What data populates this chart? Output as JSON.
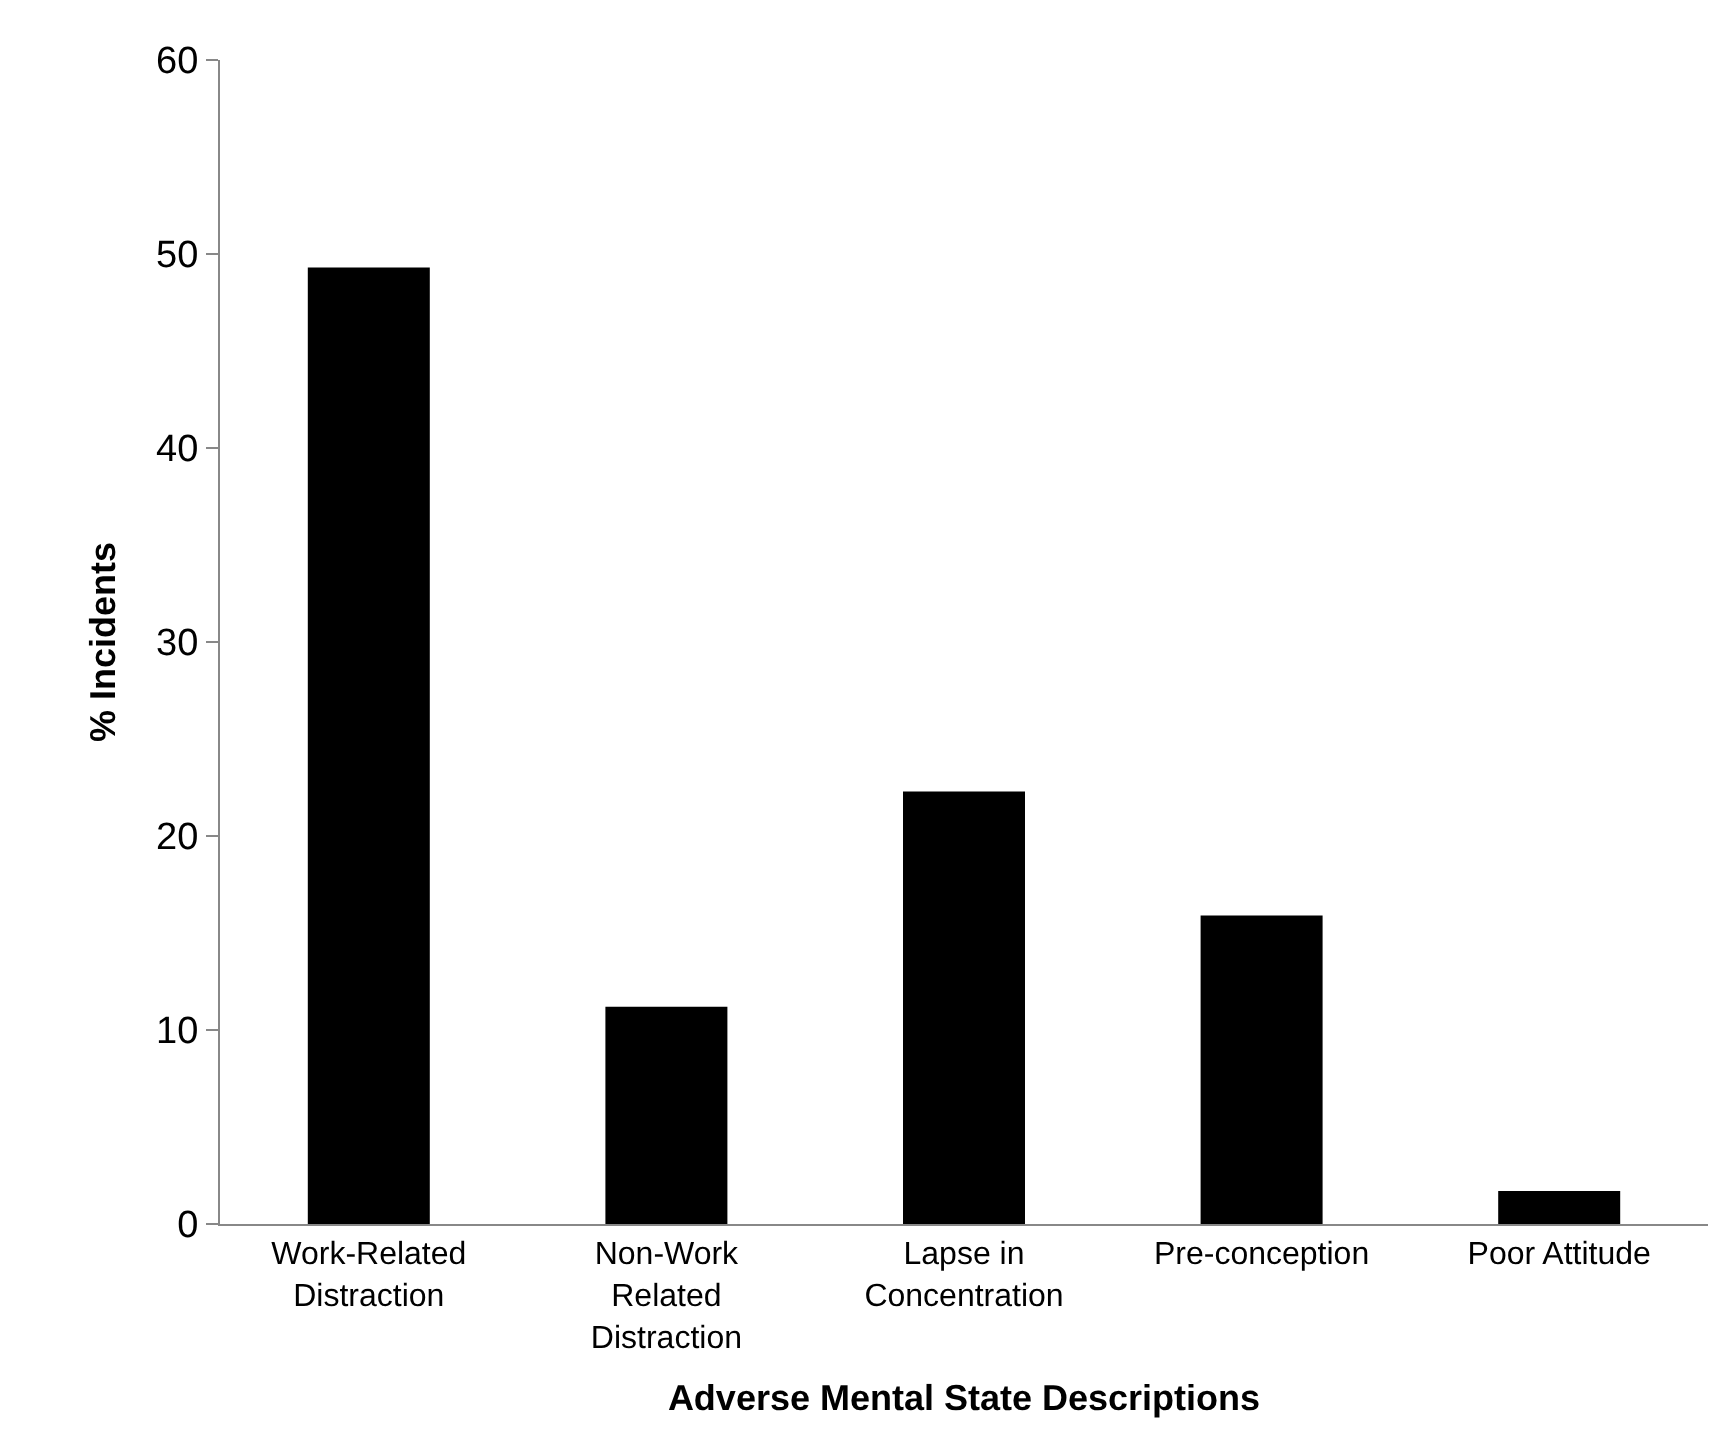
{
  "chart_data": {
    "type": "bar",
    "xlabel": "Adverse Mental State Descriptions",
    "ylabel": "% Incidents",
    "categories": [
      "Work-Related Distraction",
      "Non-Work Related Distraction",
      "Lapse in Concentration",
      "Pre-conception",
      "Poor Attitude"
    ],
    "values": [
      49.3,
      11.2,
      22.3,
      15.9,
      1.7
    ],
    "color": "#000000",
    "ylim": [
      0,
      60
    ],
    "yticks": [
      0,
      10,
      20,
      30,
      40,
      50,
      60
    ],
    "grid": false
  }
}
